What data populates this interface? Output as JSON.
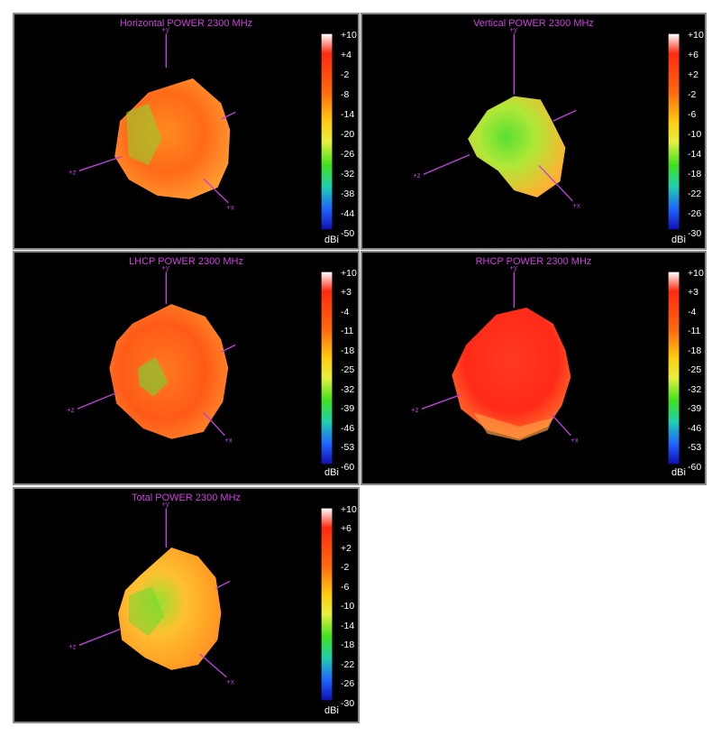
{
  "colorbar_colors": [
    "#ffffff",
    "#ff2a10",
    "#ff6a10",
    "#ffcc10",
    "#e8f040",
    "#40e020",
    "#20d0b0",
    "#2060ff",
    "#1010b0"
  ],
  "chart_data": [
    {
      "type": "3d-radiation-pattern",
      "title": "Horizontal POWER 2300  MHz",
      "axes": [
        "+y",
        "+z",
        "+x"
      ],
      "colorbar": {
        "unit": "dBi",
        "ticks": [
          "+10",
          "+4",
          "-2",
          "-8",
          "-14",
          "-20",
          "-26",
          "-32",
          "-38",
          "-44",
          "-50"
        ],
        "range": [
          -50,
          10
        ]
      },
      "dominant_color": "orange-red"
    },
    {
      "type": "3d-radiation-pattern",
      "title": "Vertical POWER 2300  MHz",
      "axes": [
        "+y",
        "+z",
        "+x"
      ],
      "colorbar": {
        "unit": "dBi",
        "ticks": [
          "+10",
          "+6",
          "+2",
          "-2",
          "-6",
          "-10",
          "-14",
          "-18",
          "-22",
          "-26",
          "-30"
        ],
        "range": [
          -30,
          10
        ]
      },
      "dominant_color": "yellow-green"
    },
    {
      "type": "3d-radiation-pattern",
      "title": "LHCP POWER 2300  MHz",
      "axes": [
        "+y",
        "+z",
        "+x"
      ],
      "colorbar": {
        "unit": "dBi",
        "ticks": [
          "+10",
          "+3",
          "-4",
          "-11",
          "-18",
          "-25",
          "-32",
          "-39",
          "-46",
          "-53",
          "-60"
        ],
        "range": [
          -60,
          10
        ]
      },
      "dominant_color": "red-orange"
    },
    {
      "type": "3d-radiation-pattern",
      "title": "RHCP POWER 2300  MHz",
      "axes": [
        "+y",
        "+z",
        "+x"
      ],
      "colorbar": {
        "unit": "dBi",
        "ticks": [
          "+10",
          "+3",
          "-4",
          "-11",
          "-18",
          "-25",
          "-32",
          "-39",
          "-46",
          "-53",
          "-60"
        ],
        "range": [
          -60,
          10
        ]
      },
      "dominant_color": "red"
    },
    {
      "type": "3d-radiation-pattern",
      "title": "Total POWER 2300  MHz",
      "axes": [
        "+y",
        "+z",
        "+x"
      ],
      "colorbar": {
        "unit": "dBi",
        "ticks": [
          "+10",
          "+6",
          "+2",
          "-2",
          "-6",
          "-10",
          "-14",
          "-18",
          "-22",
          "-26",
          "-30"
        ],
        "range": [
          -30,
          10
        ]
      },
      "dominant_color": "orange-yellow"
    }
  ]
}
